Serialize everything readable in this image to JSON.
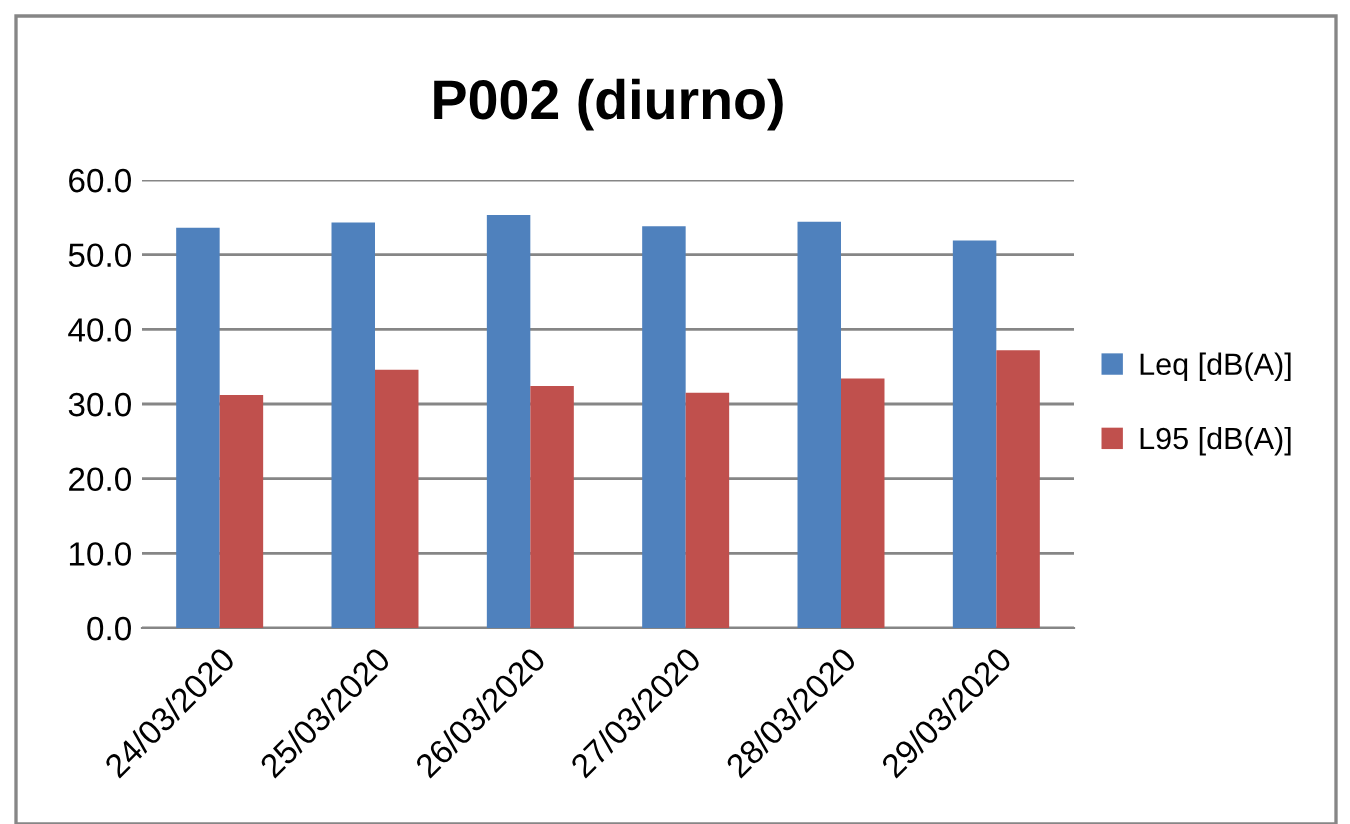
{
  "chart_data": {
    "type": "bar",
    "title": "P002 (diurno)",
    "categories": [
      "24/03/2020",
      "25/03/2020",
      "26/03/2020",
      "27/03/2020",
      "28/03/2020",
      "29/03/2020"
    ],
    "series": [
      {
        "name": "Leq [dB(A)]",
        "color": "#4f81bd",
        "values": [
          53.6,
          54.3,
          55.3,
          53.8,
          54.4,
          51.9
        ]
      },
      {
        "name": "L95 [dB(A)]",
        "color": "#c0504d",
        "values": [
          31.2,
          34.6,
          32.4,
          31.5,
          33.4,
          37.2
        ]
      }
    ],
    "ylim": [
      0,
      60
    ],
    "yticks": [
      {
        "value": 0,
        "label": "0.0"
      },
      {
        "value": 10,
        "label": "10.0"
      },
      {
        "value": 20,
        "label": "20.0"
      },
      {
        "value": 30,
        "label": "30.0"
      },
      {
        "value": 40,
        "label": "40.0"
      },
      {
        "value": 50,
        "label": "50.0"
      },
      {
        "value": 60,
        "label": "60.0"
      }
    ],
    "grid": "y",
    "legend": "right"
  }
}
